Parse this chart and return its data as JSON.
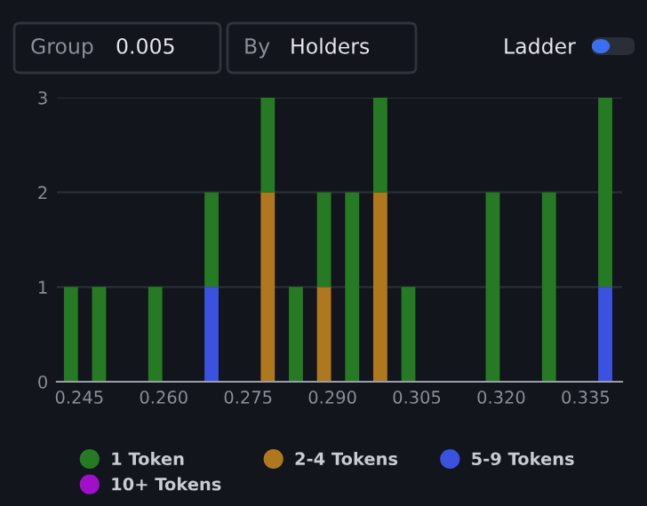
{
  "chart_data": {
    "type": "bar",
    "stacked": true,
    "x": [
      0.2435,
      0.2485,
      0.2585,
      0.2685,
      0.2785,
      0.2835,
      0.2885,
      0.2935,
      0.2985,
      0.3035,
      0.3185,
      0.3285,
      0.3385
    ],
    "series": [
      {
        "name": "10+ Tokens",
        "color": "#a010c8",
        "values": [
          0,
          0,
          0,
          0,
          0,
          0,
          0,
          0,
          0,
          0,
          0,
          0,
          0
        ]
      },
      {
        "name": "5-9 Tokens",
        "color": "#3b52e0",
        "values": [
          0,
          0,
          0,
          1,
          0,
          0,
          0,
          0,
          0,
          0,
          0,
          0,
          1
        ]
      },
      {
        "name": "2-4 Tokens",
        "color": "#b0781e",
        "values": [
          0,
          0,
          0,
          0,
          2,
          0,
          1,
          0,
          2,
          0,
          0,
          0,
          0
        ]
      },
      {
        "name": "1 Token",
        "color": "#267a24",
        "values": [
          1,
          1,
          1,
          1,
          1,
          1,
          1,
          2,
          1,
          1,
          2,
          2,
          2
        ]
      }
    ],
    "xlim": [
      0.241,
      0.3415
    ],
    "xticks": [
      {
        "value": 0.245,
        "label": "0.245"
      },
      {
        "value": 0.26,
        "label": "0.260"
      },
      {
        "value": 0.275,
        "label": "0.275"
      },
      {
        "value": 0.29,
        "label": "0.290"
      },
      {
        "value": 0.305,
        "label": "0.305"
      },
      {
        "value": 0.32,
        "label": "0.320"
      },
      {
        "value": 0.335,
        "label": "0.335"
      }
    ],
    "ylim": [
      0,
      3
    ],
    "yticks": [
      0,
      1,
      2,
      3
    ],
    "grid": "y",
    "legend": "bottom",
    "annotations": [
      "Group",
      "0.005",
      "By",
      "Holders",
      "Ladder"
    ]
  }
}
